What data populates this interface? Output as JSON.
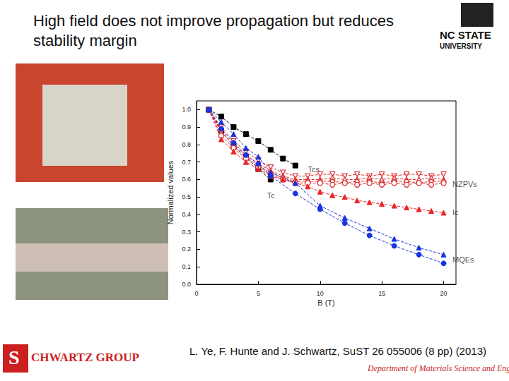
{
  "chart_data": {
    "type": "line",
    "title": "High field does not improve propagation but reduces stability margin",
    "x_label": "B (T)",
    "y_label": "Normalized values",
    "xlim": [
      0,
      21
    ],
    "xticks": [
      0,
      5,
      10,
      15,
      20
    ],
    "ylim": [
      0,
      1.05
    ],
    "yticks": [
      {
        "value": 0,
        "label": "0.0"
      },
      0.1,
      0.2,
      0.3,
      0.4,
      0.5,
      0.6,
      0.7,
      0.8,
      0.9,
      {
        "value": 1,
        "label": "1.0"
      }
    ],
    "grid": false,
    "series": [
      {
        "name": "Tcs",
        "color": "#000000",
        "marker": "square",
        "line_style": "dashed",
        "x": [
          1,
          2,
          3,
          4,
          5,
          6,
          7,
          8
        ],
        "values": [
          1.0,
          0.96,
          0.9,
          0.86,
          0.82,
          0.77,
          0.72,
          0.68
        ]
      },
      {
        "name": "Tc",
        "color": "#000000",
        "marker": "square",
        "line_style": "dashed",
        "x": [
          1,
          2,
          3,
          4,
          5,
          6
        ],
        "values": [
          1.0,
          0.88,
          0.79,
          0.73,
          0.66,
          0.6
        ]
      },
      {
        "name": "NZPVs",
        "color": "#e03030",
        "marker": "open-triangle-down",
        "line_style": "dashed",
        "x": [
          1,
          2,
          3,
          4,
          5,
          6,
          7,
          8,
          9,
          10,
          11,
          12,
          13,
          14,
          15,
          16,
          17,
          18,
          19,
          20
        ],
        "values": [
          1.0,
          0.9,
          0.82,
          0.76,
          0.71,
          0.67,
          0.64,
          0.62,
          0.62,
          0.63,
          0.63,
          0.62,
          0.63,
          0.62,
          0.63,
          0.62,
          0.63,
          0.63,
          0.62,
          0.63
        ]
      },
      {
        "name": "NZPVs",
        "color": "#e03030",
        "marker": "open-triangle",
        "line_style": "dashed",
        "x": [
          1,
          2,
          3,
          4,
          5,
          6,
          7,
          8,
          9,
          10,
          11,
          12,
          13,
          14,
          15,
          16,
          17,
          18,
          19,
          20
        ],
        "values": [
          1.0,
          0.87,
          0.8,
          0.74,
          0.69,
          0.65,
          0.62,
          0.6,
          0.6,
          0.6,
          0.61,
          0.6,
          0.6,
          0.61,
          0.6,
          0.61,
          0.6,
          0.6,
          0.61,
          0.6
        ]
      },
      {
        "name": "NZPVs",
        "color": "#e03030",
        "marker": "open-diamond",
        "line_style": "dashed",
        "x": [
          1,
          2,
          3,
          4,
          5,
          6,
          7,
          8,
          9,
          10,
          11,
          12,
          13,
          14,
          15,
          16,
          17,
          18,
          19,
          20
        ],
        "values": [
          1.0,
          0.88,
          0.79,
          0.73,
          0.68,
          0.64,
          0.61,
          0.59,
          0.59,
          0.59,
          0.59,
          0.58,
          0.59,
          0.59,
          0.58,
          0.59,
          0.59,
          0.58,
          0.59,
          0.59
        ]
      },
      {
        "name": "NZPVs",
        "color": "#e03030",
        "marker": "open-circle",
        "line_style": "dashed",
        "x": [
          1,
          2,
          3,
          4,
          5,
          6,
          7,
          8,
          9,
          10,
          11,
          12,
          13,
          14,
          15,
          16,
          17,
          18,
          19,
          20
        ],
        "values": [
          1.0,
          0.85,
          0.78,
          0.72,
          0.67,
          0.63,
          0.6,
          0.58,
          0.58,
          0.58,
          0.57,
          0.58,
          0.57,
          0.58,
          0.57,
          0.58,
          0.57,
          0.58,
          0.57,
          0.58
        ]
      },
      {
        "name": "Ic",
        "color": "#e8262b",
        "marker": "triangle",
        "line_style": "dashed",
        "x": [
          1,
          2,
          3,
          4,
          5,
          6,
          7,
          8,
          9,
          10,
          11,
          12,
          13,
          14,
          15,
          16,
          17,
          18,
          19,
          20
        ],
        "values": [
          1.0,
          0.83,
          0.76,
          0.7,
          0.66,
          0.62,
          0.6,
          0.58,
          0.56,
          0.53,
          0.51,
          0.5,
          0.48,
          0.47,
          0.46,
          0.45,
          0.44,
          0.43,
          0.42,
          0.41
        ]
      },
      {
        "name": "MQEs",
        "color": "#1a33e0",
        "marker": "triangle",
        "line_style": "dashed",
        "x": [
          1,
          2,
          3,
          4,
          5,
          6,
          8,
          10,
          12,
          14,
          16,
          18,
          20
        ],
        "values": [
          1.0,
          0.93,
          0.86,
          0.78,
          0.73,
          0.64,
          0.58,
          0.45,
          0.38,
          0.32,
          0.26,
          0.21,
          0.17
        ]
      },
      {
        "name": "MQEs",
        "color": "#1a33e0",
        "marker": "circle",
        "line_style": "dashed",
        "x": [
          1,
          2,
          3,
          4,
          5,
          6,
          8,
          10,
          12,
          14,
          16,
          18,
          20
        ],
        "values": [
          1.0,
          0.89,
          0.81,
          0.74,
          0.69,
          0.62,
          0.52,
          0.43,
          0.35,
          0.28,
          0.22,
          0.17,
          0.12
        ]
      }
    ],
    "annotations": [
      {
        "text": "Tcs",
        "x": 8.9,
        "y": 0.66
      },
      {
        "text": "Tc",
        "x": 5.6,
        "y": 0.51
      },
      {
        "text": "NZPVs",
        "x": 20.6,
        "y": 0.575
      },
      {
        "text": "Ic",
        "x": 20.6,
        "y": 0.41
      },
      {
        "text": "MQEs",
        "x": 20.6,
        "y": 0.14
      }
    ]
  },
  "slide": {
    "citation": "L. Ye, F. Hunte and J. Schwartz, SuST 26 055006 (8 pp) (2013)",
    "university": [
      "NC STATE",
      "UNIVERSITY"
    ],
    "group_logo": "S",
    "group": "CHWARTZ GROUP",
    "department": "Department of Materials Science and Engineering"
  }
}
